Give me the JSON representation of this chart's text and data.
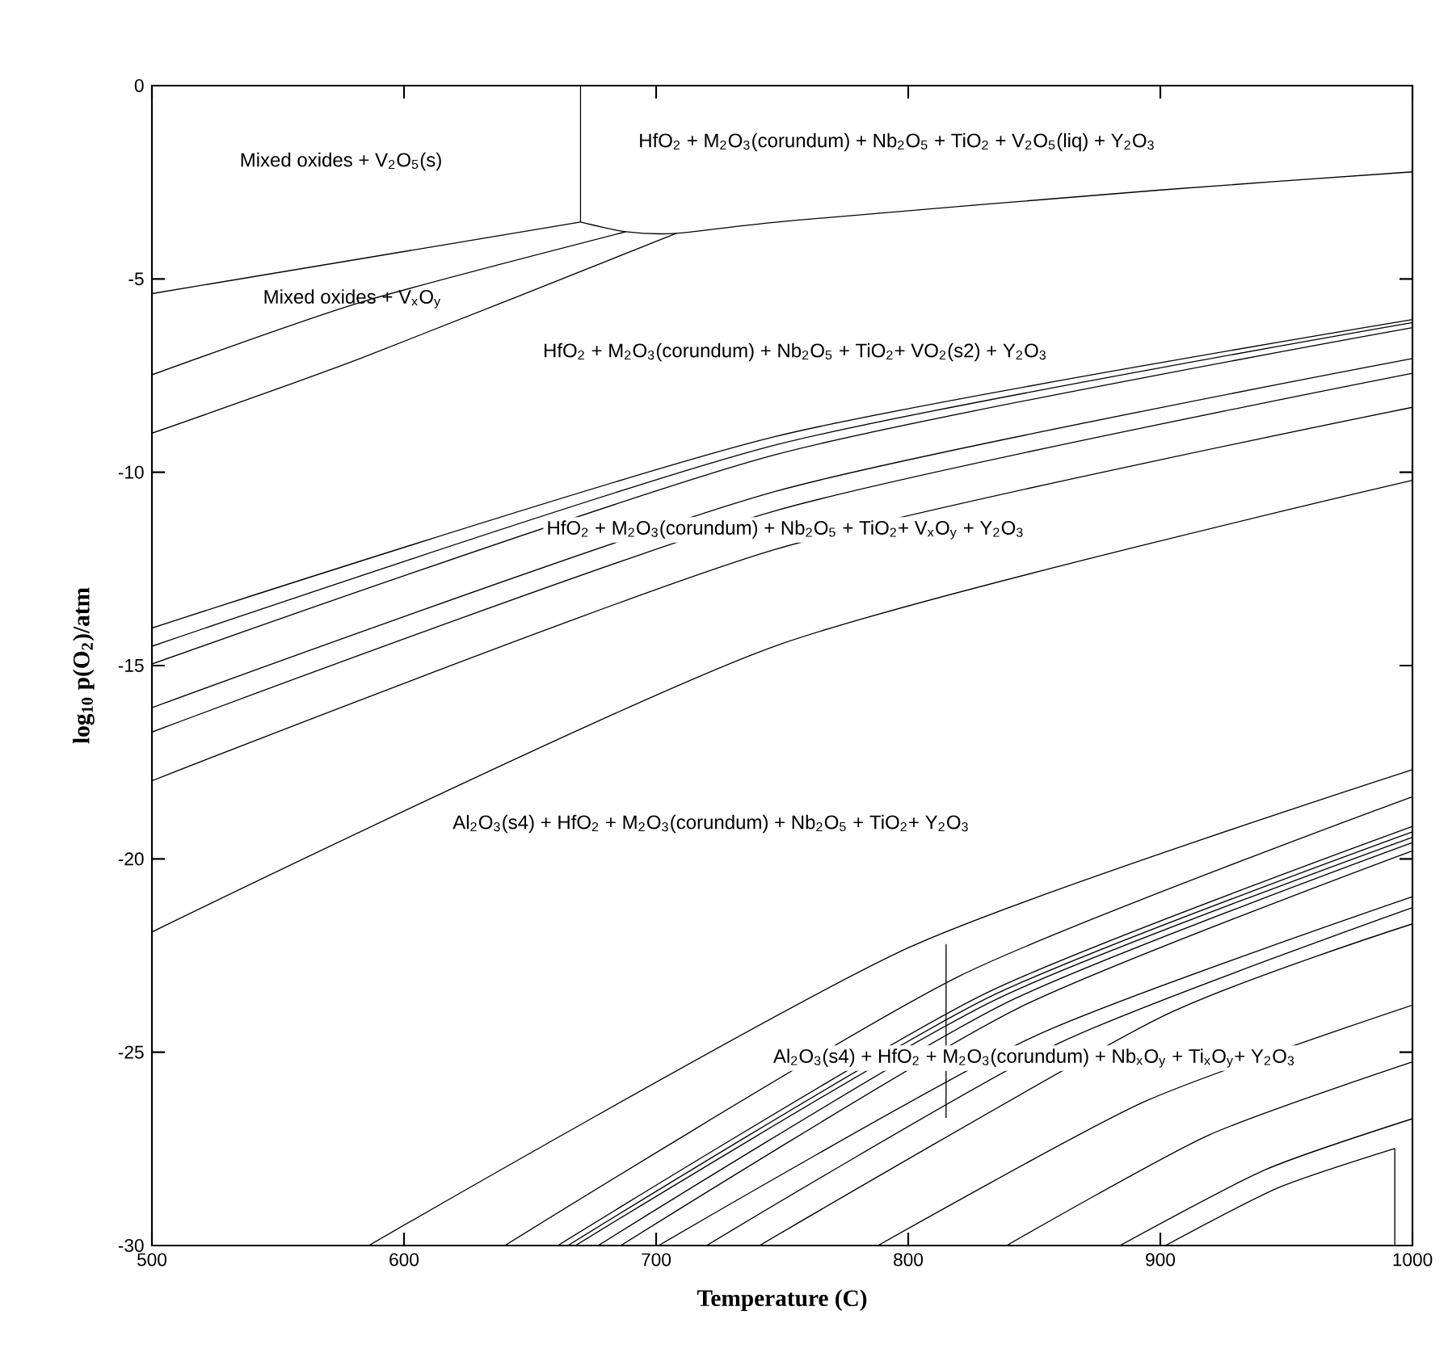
{
  "chart_data": {
    "type": "line",
    "xlabel": "Temperature (C)",
    "ylabel": "log$_{10}$ p(O$_{2}$)/atm",
    "xlim": [
      500,
      1000
    ],
    "ylim": [
      -30,
      0
    ],
    "xticks": [
      500,
      600,
      700,
      800,
      900,
      1000
    ],
    "yticks": [
      -30,
      -25,
      -20,
      -15,
      -10,
      -5,
      0
    ],
    "marker": "none",
    "line_style": "solid",
    "series": [
      {
        "color": "#000000",
        "x": [
          670,
          670
        ],
        "values": [
          0,
          -3.53
        ]
      },
      {
        "color": "#000000",
        "x": [
          500,
          670
        ],
        "values": [
          -5.38,
          -3.53
        ]
      },
      {
        "color": "#000000",
        "x": [
          670,
          688,
          708,
          754,
          900,
          1000
        ],
        "values": [
          -3.53,
          -3.78,
          -3.82,
          -3.49,
          -2.7,
          -2.23
        ]
      },
      {
        "color": "#000000",
        "x": [
          500,
          583,
          688
        ],
        "values": [
          -7.48,
          -5.6,
          -3.78
        ]
      },
      {
        "color": "#000000",
        "x": [
          500,
          583,
          708
        ],
        "values": [
          -8.99,
          -7.05,
          -3.82
        ]
      },
      {
        "color": "#000000",
        "x": [
          500,
          747,
          1000
        ],
        "values": [
          -14.03,
          -9.08,
          -6.05
        ]
      },
      {
        "color": "#000000",
        "x": [
          500,
          747,
          1000
        ],
        "values": [
          -14.5,
          -9.3,
          -6.13
        ]
      },
      {
        "color": "#000000",
        "x": [
          500,
          747,
          1000
        ],
        "values": [
          -14.96,
          -9.55,
          -6.26
        ]
      },
      {
        "color": "#000000",
        "x": [
          500,
          747,
          1000
        ],
        "values": [
          -16.09,
          -10.5,
          -7.06
        ]
      },
      {
        "color": "#000000",
        "x": [
          500,
          747,
          1000
        ],
        "values": [
          -16.72,
          -11.0,
          -7.44
        ]
      },
      {
        "color": "#000000",
        "x": [
          500,
          747,
          1000
        ],
        "values": [
          -17.98,
          -12.0,
          -8.32
        ]
      },
      {
        "color": "#000000",
        "x": [
          500,
          747,
          1000
        ],
        "values": [
          -21.89,
          -14.5,
          -10.21
        ]
      },
      {
        "color": "#000000",
        "x": [
          586,
          800,
          1000
        ],
        "values": [
          -30,
          -22.3,
          -17.69
        ]
      },
      {
        "color": "#000000",
        "x": [
          640,
          820,
          1000
        ],
        "values": [
          -30,
          -23.04,
          -18.39
        ]
      },
      {
        "color": "#000000",
        "x": [
          661,
          830,
          1000
        ],
        "values": [
          -30,
          -23.5,
          -19.16
        ]
      },
      {
        "color": "#000000",
        "x": [
          665,
          832,
          1000
        ],
        "values": [
          -30,
          -23.58,
          -19.3
        ]
      },
      {
        "color": "#000000",
        "x": [
          668,
          834,
          1000
        ],
        "values": [
          -30,
          -23.66,
          -19.44
        ]
      },
      {
        "color": "#000000",
        "x": [
          677,
          838,
          1000
        ],
        "values": [
          -30,
          -23.75,
          -19.58
        ]
      },
      {
        "color": "#000000",
        "x": [
          686,
          843,
          1000
        ],
        "values": [
          -30,
          -23.88,
          -19.79
        ]
      },
      {
        "color": "#000000",
        "x": [
          701,
          850,
          1000
        ],
        "values": [
          -30,
          -24.59,
          -20.98
        ]
      },
      {
        "color": "#000000",
        "x": [
          720,
          860,
          1000
        ],
        "values": [
          -30,
          -24.76,
          -21.26
        ]
      },
      {
        "color": "#000000",
        "x": [
          741,
          900,
          1000
        ],
        "values": [
          -30,
          -24.1,
          -21.68
        ]
      },
      {
        "color": "#000000",
        "x": [
          788,
          894,
          1000
        ],
        "values": [
          -30,
          -26.27,
          -23.78
        ]
      },
      {
        "color": "#000000",
        "x": [
          839,
          919,
          1000
        ],
        "values": [
          -30,
          -27.15,
          -25.25
        ]
      },
      {
        "color": "#000000",
        "x": [
          884,
          942,
          1000
        ],
        "values": [
          -30,
          -28.03,
          -26.72
        ]
      },
      {
        "color": "#000000",
        "x": [
          902,
          947,
          993
        ],
        "values": [
          -30,
          -28.5,
          -27.49
        ]
      },
      {
        "color": "#000000",
        "x": [
          993,
          993
        ],
        "values": [
          -27.49,
          -30
        ]
      },
      {
        "color": "#000000",
        "x": [
          815,
          815
        ],
        "values": [
          -22.2,
          -26.7
        ]
      }
    ],
    "annotations": [
      "Mixed oxides + V$_{2}$O$_{5}$(s)",
      "HfO$_{2}$ + M$_{2}$O$_{3}$(corundum) + Nb$_{2}$O$_{5}$ + TiO$_{2}$ + V$_{2}$O$_{5}$(liq) + Y$_{2}$O$_{3}$",
      "Mixed oxides + V$_{x}$O$_{y}$",
      "HfO$_{2}$ + M$_{2}$O$_{3}$(corundum) + Nb$_{2}$O$_{5}$ + TiO$_{2}$+ VO$_{2}$(s2) + Y$_{2}$O$_{3}$",
      "HfO$_{2}$ + M$_{2}$O$_{3}$(corundum) + Nb$_{2}$O$_{5}$ + TiO$_{2}$+ V$_{x}$O$_{y}$ + Y$_{2}$O$_{3}$",
      "Al$_{2}$O$_{3}$(s4) + HfO$_{2}$ + M$_{2}$O$_{3}$(corundum) + Nb$_{2}$O$_{5}$ + TiO$_{2}$+ Y$_{2}$O$_{3}$",
      "Al$_{2}$O$_{3}$(s4) + HfO$_{2}$ + M$_{2}$O$_{3}$(corundum) + Nb$_{x}$O$_{y}$ + Ti$_{x}$O$_{y}$+ Y$_{2}$O$_{3}$"
    ]
  }
}
